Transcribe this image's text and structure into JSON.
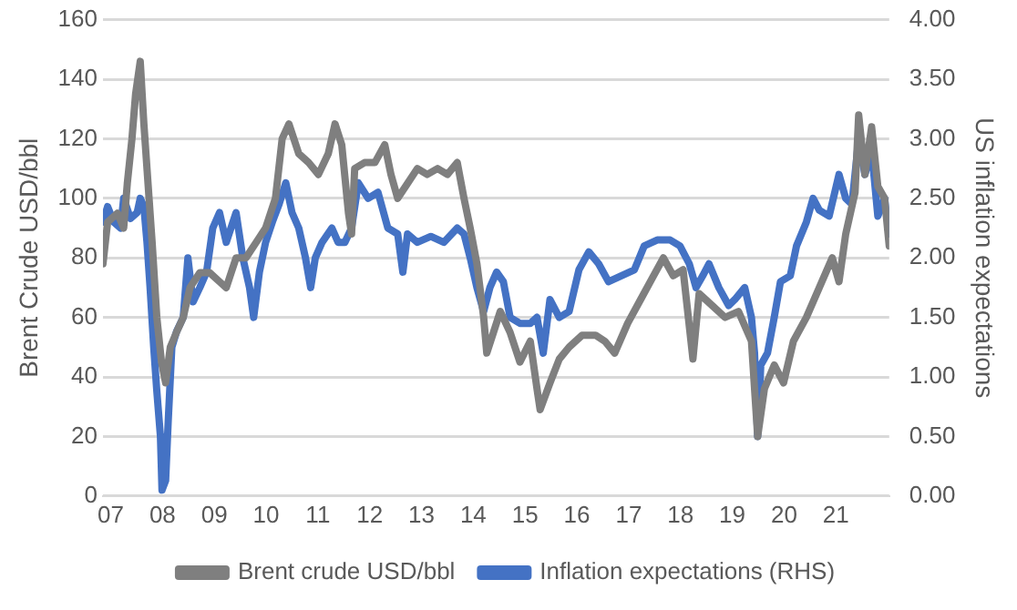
{
  "chart_data": {
    "type": "line",
    "ylabel": "Brent Crude USD/bbl",
    "y2label": "US inflation expectations",
    "xlim": [
      2006.85,
      2022.03
    ],
    "xticks": [
      {
        "value": 2007,
        "label": "07"
      },
      {
        "value": 2008,
        "label": "08"
      },
      {
        "value": 2009,
        "label": "09"
      },
      {
        "value": 2010,
        "label": "10"
      },
      {
        "value": 2011,
        "label": "11"
      },
      {
        "value": 2012,
        "label": "12"
      },
      {
        "value": 2013,
        "label": "13"
      },
      {
        "value": 2014,
        "label": "14"
      },
      {
        "value": 2015,
        "label": "15"
      },
      {
        "value": 2016,
        "label": "16"
      },
      {
        "value": 2017,
        "label": "17"
      },
      {
        "value": 2018,
        "label": "18"
      },
      {
        "value": 2019,
        "label": "19"
      },
      {
        "value": 2020,
        "label": "20"
      },
      {
        "value": 2021,
        "label": "21"
      }
    ],
    "ylim": [
      0,
      160
    ],
    "yticks": [
      0,
      20,
      40,
      60,
      80,
      100,
      120,
      140,
      160
    ],
    "y2lim": [
      0,
      4
    ],
    "y2ticks": [
      {
        "value": 0,
        "label": "0.00"
      },
      {
        "value": 0.5,
        "label": "0.50"
      },
      {
        "value": 1,
        "label": "1.00"
      },
      {
        "value": 1.5,
        "label": "1.50"
      },
      {
        "value": 2,
        "label": "2.00"
      },
      {
        "value": 2.5,
        "label": "2.50"
      },
      {
        "value": 3,
        "label": "3.00"
      },
      {
        "value": 3.5,
        "label": "3.50"
      },
      {
        "value": 4,
        "label": "4.00"
      }
    ],
    "grid": "y",
    "legend": "bottom",
    "marker": "none",
    "line_style": "solid",
    "series": [
      {
        "name": "Brent crude USD/bbl",
        "color": "#7f7f7f",
        "x": [
          2006.85,
          2006.94,
          2007.13,
          2007.25,
          2007.32,
          2007.41,
          2007.48,
          2007.57,
          2007.64,
          2007.7,
          2007.8,
          2007.89,
          2007.98,
          2008.06,
          2008.15,
          2008.27,
          2008.4,
          2008.53,
          2008.72,
          2008.91,
          2009.1,
          2009.23,
          2009.42,
          2009.61,
          2009.8,
          2009.99,
          2010.18,
          2010.31,
          2010.44,
          2010.63,
          2010.82,
          2011.01,
          2011.2,
          2011.33,
          2011.46,
          2011.59,
          2011.65,
          2011.71,
          2011.9,
          2012.1,
          2012.29,
          2012.41,
          2012.54,
          2012.73,
          2012.92,
          2013.11,
          2013.31,
          2013.5,
          2013.69,
          2013.82,
          2013.94,
          2014.07,
          2014.2,
          2014.26,
          2014.39,
          2014.52,
          2014.71,
          2014.9,
          2015.1,
          2015.23,
          2015.29,
          2015.48,
          2015.66,
          2015.85,
          2016.1,
          2016.36,
          2016.54,
          2016.73,
          2016.98,
          2017.23,
          2017.48,
          2017.67,
          2017.86,
          2018.05,
          2018.24,
          2018.36,
          2018.61,
          2018.86,
          2019.12,
          2019.37,
          2019.49,
          2019.62,
          2019.81,
          2019.99,
          2020.18,
          2020.43,
          2020.68,
          2020.93,
          2021.06,
          2021.19,
          2021.37,
          2021.44,
          2021.56,
          2021.69,
          2021.81,
          2021.94,
          2022.03
        ],
        "values": [
          78,
          92,
          95,
          90,
          105,
          120,
          135,
          146,
          125,
          110,
          85,
          60,
          45,
          38,
          50,
          55,
          60,
          70,
          75,
          75,
          72,
          70,
          80,
          80,
          85,
          90,
          100,
          120,
          125,
          115,
          112,
          108,
          115,
          125,
          118,
          95,
          88,
          110,
          112,
          112,
          118,
          108,
          100,
          105,
          110,
          108,
          110,
          108,
          112,
          100,
          90,
          78,
          60,
          48,
          55,
          62,
          55,
          45,
          52,
          36,
          29,
          38,
          46,
          50,
          54,
          54,
          52,
          48,
          58,
          66,
          74,
          80,
          74,
          76,
          46,
          68,
          64,
          60,
          62,
          52,
          20,
          36,
          44,
          38,
          52,
          60,
          70,
          80,
          72,
          88,
          102,
          128,
          108,
          124,
          104,
          100,
          84
        ]
      },
      {
        "name": "Inflation expectations (RHS)",
        "color": "#4472c4",
        "axis": "y2",
        "x": [
          2006.85,
          2006.94,
          2007.06,
          2007.19,
          2007.25,
          2007.38,
          2007.51,
          2007.57,
          2007.64,
          2007.7,
          2007.76,
          2007.83,
          2007.89,
          2007.96,
          2007.99,
          2008.06,
          2008.11,
          2008.18,
          2008.27,
          2008.4,
          2008.49,
          2008.59,
          2008.72,
          2008.85,
          2008.97,
          2009.1,
          2009.23,
          2009.42,
          2009.55,
          2009.68,
          2009.76,
          2009.87,
          2009.99,
          2010.12,
          2010.25,
          2010.38,
          2010.5,
          2010.63,
          2010.76,
          2010.86,
          2010.95,
          2011.08,
          2011.27,
          2011.39,
          2011.52,
          2011.65,
          2011.78,
          2011.97,
          2012.16,
          2012.35,
          2012.54,
          2012.64,
          2012.73,
          2012.92,
          2013.18,
          2013.43,
          2013.69,
          2013.82,
          2013.94,
          2014.07,
          2014.2,
          2014.32,
          2014.45,
          2014.58,
          2014.71,
          2014.9,
          2015.1,
          2015.23,
          2015.35,
          2015.48,
          2015.66,
          2015.85,
          2016.04,
          2016.23,
          2016.42,
          2016.61,
          2016.86,
          2017.11,
          2017.3,
          2017.55,
          2017.8,
          2017.99,
          2018.17,
          2018.3,
          2018.43,
          2018.55,
          2018.74,
          2018.93,
          2019.05,
          2019.24,
          2019.37,
          2019.43,
          2019.49,
          2019.55,
          2019.68,
          2019.81,
          2019.93,
          2020.12,
          2020.24,
          2020.43,
          2020.56,
          2020.68,
          2020.87,
          2021.06,
          2021.19,
          2021.31,
          2021.44,
          2021.56,
          2021.69,
          2021.81,
          2021.94,
          2022.03
        ],
        "values": [
          2.3,
          2.43,
          2.3,
          2.25,
          2.5,
          2.33,
          2.38,
          2.5,
          2.43,
          2.13,
          1.75,
          1.25,
          0.88,
          0.5,
          0.05,
          0.13,
          0.63,
          1.25,
          1.38,
          1.5,
          2.0,
          1.63,
          1.75,
          1.88,
          2.25,
          2.38,
          2.13,
          2.38,
          2.0,
          1.75,
          1.5,
          1.88,
          2.13,
          2.3,
          2.45,
          2.63,
          2.38,
          2.25,
          2.0,
          1.75,
          2.0,
          2.13,
          2.25,
          2.13,
          2.13,
          2.25,
          2.63,
          2.5,
          2.55,
          2.25,
          2.2,
          1.88,
          2.2,
          2.13,
          2.18,
          2.13,
          2.25,
          2.2,
          2.0,
          1.75,
          1.55,
          1.75,
          1.88,
          1.8,
          1.5,
          1.45,
          1.45,
          1.5,
          1.2,
          1.65,
          1.5,
          1.55,
          1.9,
          2.05,
          1.95,
          1.8,
          1.85,
          1.9,
          2.1,
          2.15,
          2.15,
          2.1,
          1.95,
          1.75,
          1.85,
          1.95,
          1.75,
          1.6,
          1.65,
          1.75,
          1.5,
          1.2,
          0.5,
          1.1,
          1.2,
          1.5,
          1.8,
          1.85,
          2.1,
          2.3,
          2.5,
          2.4,
          2.35,
          2.7,
          2.5,
          2.45,
          3.0,
          2.7,
          2.9,
          2.35,
          2.5,
          2.2
        ]
      }
    ]
  }
}
